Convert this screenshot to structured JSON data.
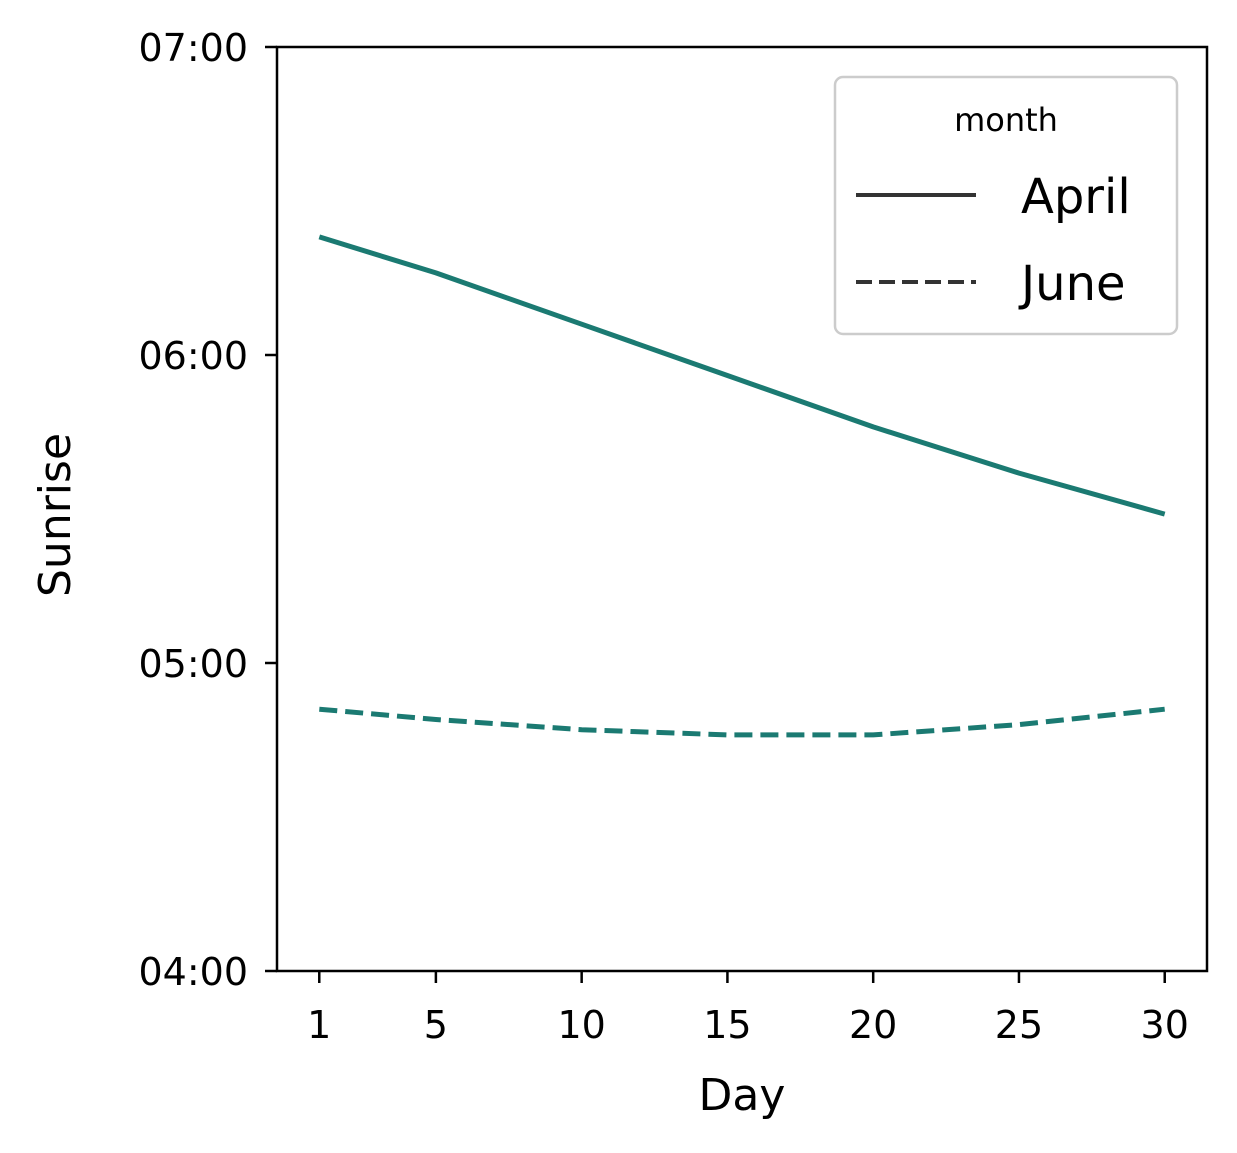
{
  "chart_data": {
    "type": "line",
    "title": "",
    "xlabel": "Day",
    "ylabel": "Sunrise",
    "x_ticks": [
      1,
      5,
      10,
      15,
      20,
      25,
      30
    ],
    "x_tick_labels": [
      "1",
      "5",
      "10",
      "15",
      "20",
      "25",
      "30"
    ],
    "xlim": [
      -0.45,
      31.45
    ],
    "y_ticks": [
      "04:00",
      "05:00",
      "06:00",
      "07:00"
    ],
    "ylim": [
      "04:00",
      "07:00"
    ],
    "grid": false,
    "legend": {
      "title": "month",
      "placement": "top-right",
      "entries": [
        {
          "label": "April",
          "style": "solid"
        },
        {
          "label": "June",
          "style": "dashed"
        }
      ]
    },
    "line_color": "#1b7a72",
    "series": [
      {
        "name": "April",
        "style": "solid",
        "x": [
          1,
          5,
          10,
          15,
          20,
          25,
          30
        ],
        "y": [
          "06:23",
          "06:16",
          "06:06",
          "05:56",
          "05:46",
          "05:37",
          "05:29"
        ]
      },
      {
        "name": "June",
        "style": "dashed",
        "x": [
          1,
          5,
          10,
          15,
          20,
          25,
          30
        ],
        "y": [
          "04:51",
          "04:49",
          "04:47",
          "04:46",
          "04:46",
          "04:48",
          "04:51"
        ]
      }
    ]
  }
}
